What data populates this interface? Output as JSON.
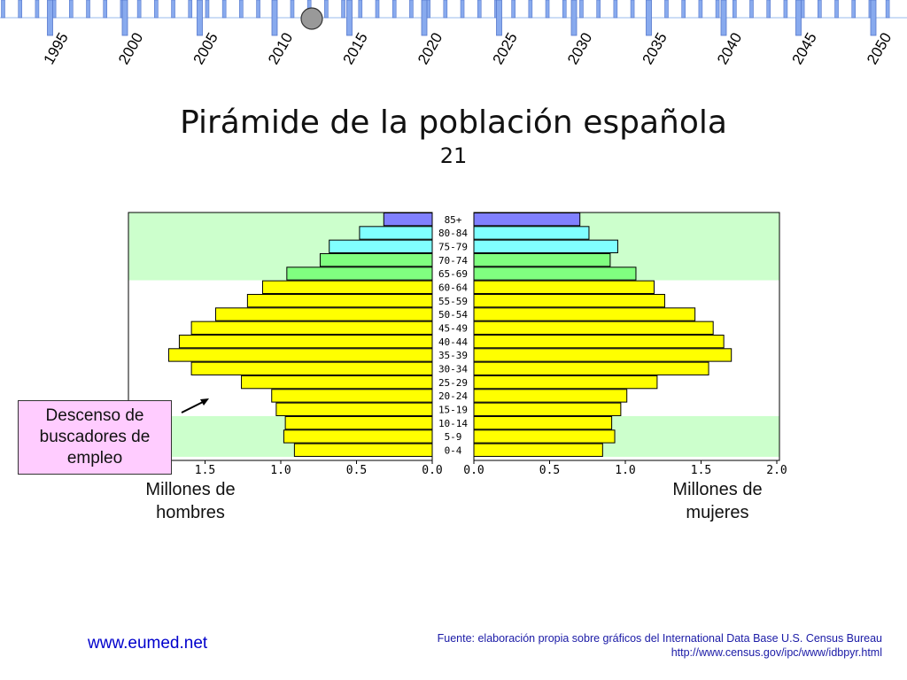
{
  "timeline": {
    "years": [
      "1995",
      "2000",
      "2005",
      "2010",
      "2015",
      "2020",
      "2025",
      "2030",
      "2035",
      "2040",
      "2045",
      "2050"
    ],
    "marker_after_index": 3
  },
  "title": "Pirámide de la población española",
  "subtitle": "21",
  "chart_data": {
    "type": "bar",
    "subtype": "population-pyramid",
    "categories": [
      "85+",
      "80-84",
      "75-79",
      "70-74",
      "65-69",
      "60-64",
      "55-59",
      "50-54",
      "45-49",
      "40-44",
      "35-39",
      "30-34",
      "25-29",
      "20-24",
      "15-19",
      "10-14",
      "5-9",
      "0-4"
    ],
    "series": [
      {
        "name": "Millones de hombres",
        "values": [
          0.32,
          0.48,
          0.68,
          0.74,
          0.96,
          1.12,
          1.22,
          1.43,
          1.59,
          1.67,
          1.74,
          1.59,
          1.26,
          1.06,
          1.03,
          0.97,
          0.98,
          0.91
        ]
      },
      {
        "name": "Millones de mujeres",
        "values": [
          0.7,
          0.76,
          0.95,
          0.9,
          1.07,
          1.19,
          1.26,
          1.46,
          1.58,
          1.65,
          1.7,
          1.55,
          1.21,
          1.01,
          0.97,
          0.91,
          0.93,
          0.85
        ]
      }
    ],
    "xlim": [
      0,
      2.0
    ],
    "left_ticks": [
      "1.5",
      "1.0",
      "0.5",
      "0.0"
    ],
    "right_ticks": [
      "0.0",
      "0.5",
      "1.0",
      "1.5",
      "2.0"
    ],
    "band_colors": {
      "young": "#ccffcc",
      "working": "#ffffff",
      "old": "#ccffcc"
    },
    "bar_colors": {
      "85+": "#8080ff",
      "80-84": "#80ffff",
      "75-79": "#80ffff",
      "70-74": "#80ff80",
      "65-69": "#80ff80",
      "working": "#ffff00"
    },
    "xlabel_left": "Millones de\nhombres",
    "xlabel_right": "Millones de\nmujeres",
    "annotation": "Descenso de buscadores de empleo"
  },
  "callout": "Descenso de buscadores de empleo",
  "captions": {
    "men": "Millones de hombres",
    "women": "Millones de mujeres"
  },
  "footer": {
    "site": "www.eumed.net",
    "source_line1": "Fuente: elaboración propia sobre gráficos del International Data Base U.S. Census Bureau",
    "source_line2": "http://www.census.gov/ipc/www/idbpyr.html"
  }
}
